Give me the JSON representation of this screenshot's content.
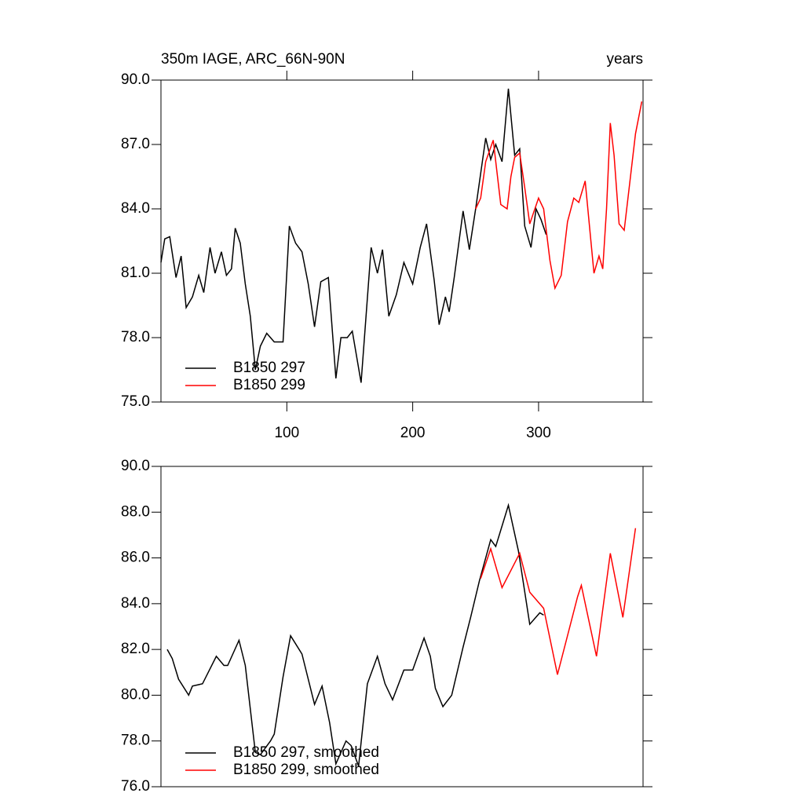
{
  "chart_data": [
    {
      "type": "line",
      "title": "350m IAGE, ARC_66N-90N",
      "units": "years",
      "xlim": [
        0,
        383
      ],
      "xticks": [
        100,
        200,
        300
      ],
      "ylim": [
        75,
        90
      ],
      "yticks": [
        {
          "value": 75,
          "label": "75.0"
        },
        {
          "value": 78,
          "label": "78.0"
        },
        {
          "value": 81,
          "label": "81.0"
        },
        {
          "value": 84,
          "label": "84.0"
        },
        {
          "value": 87,
          "label": "87.0"
        },
        {
          "value": 90,
          "label": "90.0"
        }
      ],
      "legend": "lower left",
      "series": [
        {
          "name": "B1850 297",
          "color": "#000000",
          "x": [
            0,
            3,
            7,
            12,
            16,
            20,
            25,
            30,
            34,
            39,
            43,
            48,
            52,
            56,
            59,
            63,
            67,
            71,
            75,
            79,
            84,
            90,
            97,
            102,
            107,
            112,
            117,
            122,
            127,
            133,
            139,
            143,
            148,
            152,
            159,
            167,
            172,
            176,
            181,
            187,
            193,
            200,
            206,
            211,
            217,
            221,
            226,
            229,
            233,
            240,
            245,
            250,
            258,
            262,
            266,
            271,
            276,
            281,
            285,
            289,
            294,
            298,
            302,
            306
          ],
          "values": [
            81.5,
            82.6,
            82.7,
            80.8,
            81.8,
            79.4,
            79.9,
            80.9,
            80.1,
            82.2,
            81,
            82,
            80.9,
            81.2,
            83.1,
            82.4,
            80.5,
            79,
            76.5,
            77.6,
            78.2,
            77.8,
            77.8,
            83.2,
            82.4,
            82,
            80.5,
            78.5,
            80.6,
            80.8,
            76.1,
            78,
            78,
            78.3,
            75.9,
            82.2,
            81,
            82.1,
            79,
            80,
            81.5,
            80.5,
            82.2,
            83.3,
            80.7,
            78.6,
            79.9,
            79.2,
            80.8,
            83.9,
            82.1,
            84,
            87.3,
            86.3,
            87,
            86.2,
            89.6,
            86.5,
            86.8,
            83.2,
            82.2,
            84,
            83.5,
            82.8
          ]
        },
        {
          "name": "B1850 299",
          "color": "#ff0000",
          "x": [
            250,
            254,
            258,
            264,
            270,
            275,
            278,
            281,
            285,
            289,
            293,
            300,
            304,
            309,
            313,
            318,
            323,
            328,
            332,
            337,
            344,
            348,
            351,
            354,
            357,
            360,
            364,
            368,
            373,
            377,
            382
          ],
          "values": [
            84,
            84.5,
            86.2,
            87.2,
            84.2,
            84,
            85.5,
            86.4,
            86.6,
            85,
            83.3,
            84.5,
            84,
            81.6,
            80.3,
            80.9,
            83.4,
            84.5,
            84.3,
            85.3,
            81,
            81.8,
            81.2,
            84,
            88,
            86.5,
            83.3,
            83,
            85.5,
            87.5,
            89
          ]
        }
      ]
    },
    {
      "type": "line",
      "xlim": [
        0,
        383
      ],
      "ylim": [
        76,
        90
      ],
      "yticks": [
        {
          "value": 76,
          "label": "76.0"
        },
        {
          "value": 78,
          "label": "78.0"
        },
        {
          "value": 80,
          "label": "80.0"
        },
        {
          "value": 82,
          "label": "82.0"
        },
        {
          "value": 84,
          "label": "84.0"
        },
        {
          "value": 86,
          "label": "86.0"
        },
        {
          "value": 88,
          "label": "88.0"
        },
        {
          "value": 90,
          "label": "90.0"
        }
      ],
      "legend": "lower left",
      "series": [
        {
          "name": "B1850 297, smoothed",
          "color": "#000000",
          "x": [
            5,
            9,
            14,
            22,
            25,
            33,
            44,
            50,
            53,
            62,
            67,
            75,
            79,
            87,
            90,
            97,
            103,
            112,
            122,
            128,
            134,
            139,
            147,
            151,
            157,
            164,
            172,
            178,
            184,
            193,
            200,
            209,
            214,
            218,
            224,
            231,
            240,
            246,
            253,
            262,
            266,
            276,
            284,
            293,
            301,
            304
          ],
          "values": [
            82,
            81.6,
            80.7,
            80,
            80.4,
            80.5,
            81.7,
            81.3,
            81.3,
            82.4,
            81.3,
            77.5,
            77.4,
            78,
            78.3,
            80.8,
            82.6,
            81.8,
            79.6,
            80.4,
            78.8,
            77,
            78,
            77.8,
            76.9,
            80.5,
            81.7,
            80.5,
            79.8,
            81.1,
            81.1,
            82.5,
            81.7,
            80.3,
            79.5,
            80,
            82.1,
            83.4,
            85,
            86.8,
            86.5,
            88.3,
            86.3,
            83.1,
            83.6,
            83.5
          ]
        },
        {
          "name": "B1850 299, smoothed",
          "color": "#ff0000",
          "x": [
            254,
            262,
            271,
            285,
            293,
            304,
            315,
            331,
            334,
            346,
            357,
            367,
            377
          ],
          "values": [
            85.1,
            86.4,
            84.7,
            86.2,
            84.5,
            83.8,
            80.9,
            84.3,
            84.8,
            81.7,
            86.2,
            83.4,
            87.3
          ]
        }
      ]
    }
  ]
}
